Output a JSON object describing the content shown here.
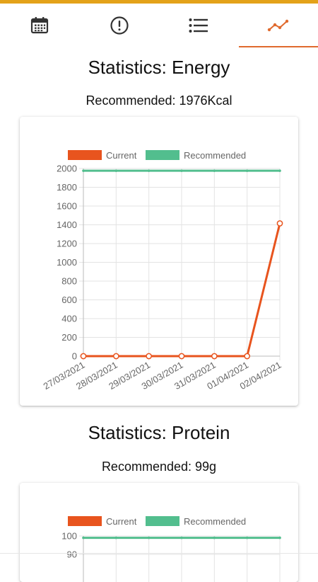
{
  "nav": {
    "tabs": [
      {
        "icon": "calendar-icon",
        "active": false
      },
      {
        "icon": "alert-circle-icon",
        "active": false
      },
      {
        "icon": "list-icon",
        "active": false
      },
      {
        "icon": "trend-line-icon",
        "active": true
      }
    ],
    "accent": "#E06A2E",
    "topbar_color": "#E3A21A",
    "icon_color": "#333333"
  },
  "energy": {
    "title": "Statistics: Energy",
    "recommended": "Recommended: 1976Kcal"
  },
  "protein": {
    "title": "Statistics: Protein",
    "recommended": "Recommended: 99g"
  },
  "chart_data": [
    {
      "type": "line",
      "legend": [
        "Current",
        "Recommended"
      ],
      "legend_position": "top",
      "categories": [
        "27/03/2021",
        "28/03/2021",
        "29/03/2021",
        "30/03/2021",
        "31/03/2021",
        "01/04/2021",
        "02/04/2021"
      ],
      "series": [
        {
          "name": "Current",
          "color": "#E8541E",
          "values": [
            0,
            0,
            0,
            0,
            0,
            0,
            1415
          ]
        },
        {
          "name": "Recommended",
          "color": "#52BE8E",
          "values": [
            1976,
            1976,
            1976,
            1976,
            1976,
            1976,
            1976
          ]
        }
      ],
      "ylim": [
        0,
        2000
      ],
      "yticks": [
        "2000",
        "1800",
        "1600",
        "1400",
        "1200",
        "1000",
        "800",
        "600",
        "400",
        "200",
        "0"
      ],
      "grid": true
    },
    {
      "type": "line",
      "legend": [
        "Current",
        "Recommended"
      ],
      "legend_position": "top",
      "series": [
        {
          "name": "Current",
          "color": "#E8541E"
        },
        {
          "name": "Recommended",
          "color": "#52BE8E",
          "values": [
            99,
            99,
            99,
            99,
            99,
            99,
            99
          ]
        }
      ],
      "ylim_top": 100,
      "yticks_visible": [
        "100",
        "90"
      ],
      "grid": true
    }
  ]
}
